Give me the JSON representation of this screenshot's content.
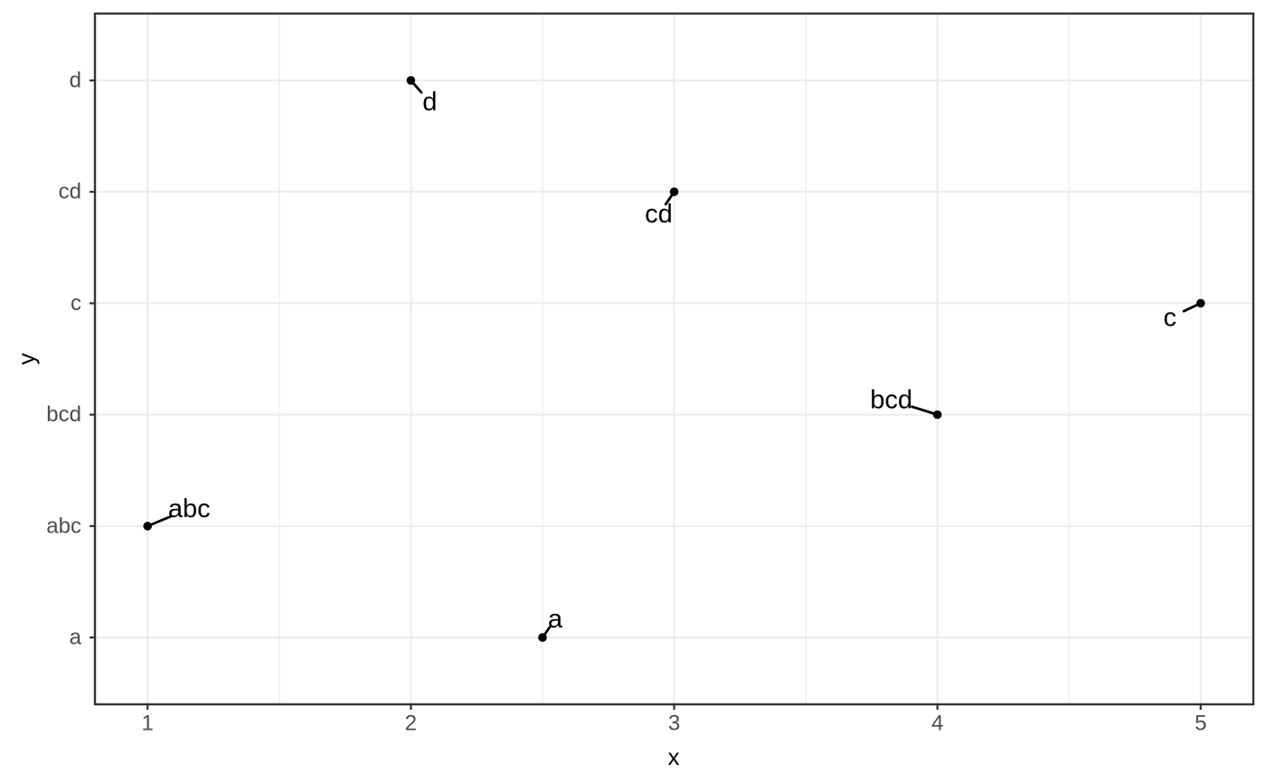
{
  "chart_data": {
    "type": "scatter",
    "title": "",
    "xlabel": "x",
    "ylabel": "y",
    "legend": "none",
    "grid": "on",
    "x_axis": {
      "ticks": [
        1,
        2,
        3,
        4,
        5
      ],
      "minor_ticks": [
        1.5,
        2.5,
        3.5,
        4.5
      ],
      "range": [
        0.8,
        5.2
      ]
    },
    "y_axis": {
      "categories": [
        "a",
        "abc",
        "bcd",
        "c",
        "cd",
        "d"
      ],
      "range_units": [
        0.4,
        6.6
      ]
    },
    "points": [
      {
        "x": 1,
        "y": "abc",
        "label": "abc",
        "label_offset": [
          46,
          -19
        ]
      },
      {
        "x": 2,
        "y": "d",
        "label": "d",
        "label_offset": [
          21,
          24
        ]
      },
      {
        "x": 2.5,
        "y": "a",
        "label": "a",
        "label_offset": [
          14,
          -20
        ]
      },
      {
        "x": 3,
        "y": "cd",
        "label": "cd",
        "label_offset": [
          -17,
          25
        ]
      },
      {
        "x": 4,
        "y": "bcd",
        "label": "bcd",
        "label_offset": [
          -51,
          -16
        ]
      },
      {
        "x": 5,
        "y": "c",
        "label": "c",
        "label_offset": [
          -34,
          16
        ]
      }
    ],
    "point_color": "#000000",
    "label_color": "#000000",
    "segment_color": "#000000"
  },
  "theme": {
    "background_color": "#ffffff",
    "panel_background_color": "#ffffff",
    "panel_border_color": "#333333",
    "grid_major_color": "#ebebeb",
    "grid_minor_color": "#efefef",
    "tick_color": "#333333",
    "tick_label_color": "#4d4d4d",
    "axis_title_color": "#000000"
  }
}
